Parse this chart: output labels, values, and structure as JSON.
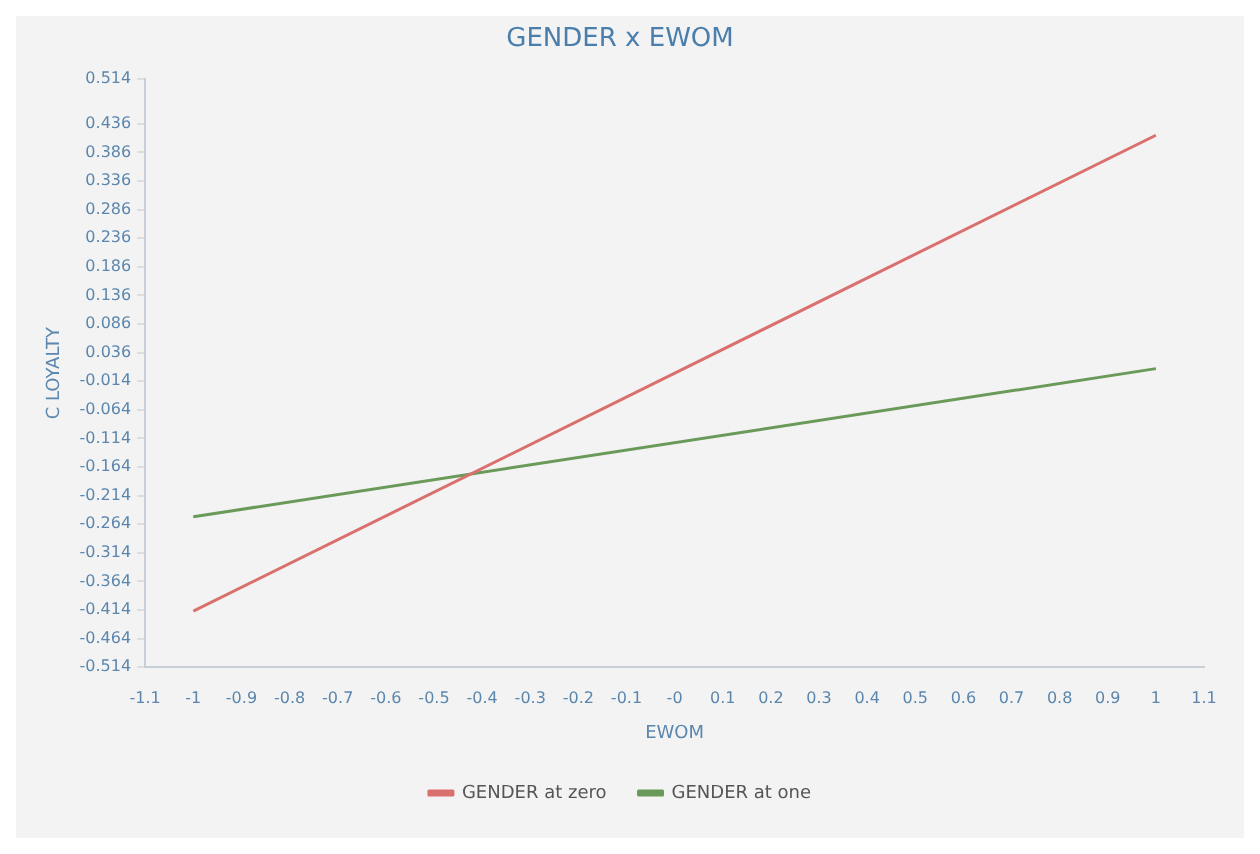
{
  "chart_data": {
    "type": "line",
    "title": "GENDER x EWOM",
    "xlabel": "EWOM",
    "ylabel": "C LOYALTY",
    "x": [
      -1,
      1
    ],
    "series": [
      {
        "name": "GENDER at zero",
        "color": "#d9706e",
        "values": [
          -0.416,
          0.416
        ]
      },
      {
        "name": "GENDER at one",
        "color": "#6a9a5a",
        "values": [
          -0.251,
          0.008
        ]
      }
    ],
    "xlim": [
      -1.1,
      1.1
    ],
    "xticks": [
      -1.1,
      -1,
      -0.9,
      -0.8,
      -0.7,
      -0.6,
      -0.5,
      -0.4,
      -0.3,
      -0.2,
      -0.1,
      {
        "value": 0,
        "label": "-0"
      },
      0.1,
      0.2,
      0.3,
      0.4,
      0.5,
      0.6,
      0.7,
      0.8,
      0.9,
      1,
      1.1
    ],
    "ylim": [
      -0.514,
      0.514
    ],
    "yticks": [
      -0.514,
      -0.464,
      -0.414,
      -0.364,
      -0.314,
      -0.264,
      -0.214,
      -0.164,
      -0.114,
      -0.064,
      -0.014,
      0.036,
      0.086,
      0.136,
      0.186,
      0.236,
      0.286,
      0.336,
      0.386,
      0.436,
      0.514
    ],
    "grid": false,
    "legend": "bottom",
    "marker": "none",
    "line_style": "solid"
  }
}
